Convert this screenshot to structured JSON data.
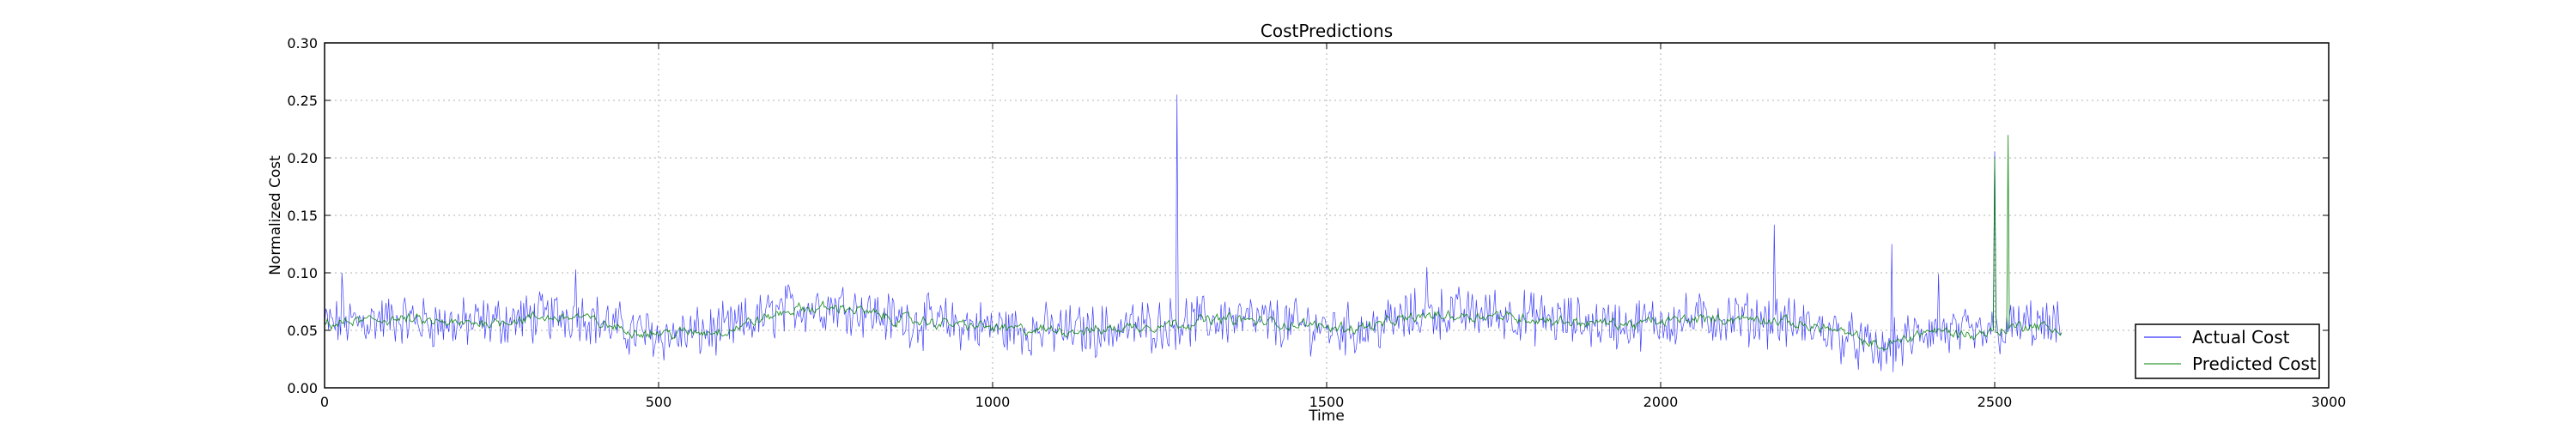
{
  "chart_data": {
    "type": "line",
    "title": "CostPredictions",
    "xlabel": "Time",
    "ylabel": "Normalized Cost",
    "xlim": [
      0,
      3000
    ],
    "ylim": [
      0,
      0.3
    ],
    "xticks": [
      "0",
      "500",
      "1000",
      "1500",
      "2000",
      "2500",
      "3000"
    ],
    "yticks": [
      "0.00",
      "0.05",
      "0.10",
      "0.15",
      "0.20",
      "0.25",
      "0.30"
    ],
    "grid": true,
    "legend_position": "lower-right",
    "x_range": [
      0,
      2600
    ],
    "series": [
      {
        "name": "Actual Cost",
        "color": "#0000ff",
        "baseline": [
          [
            0,
            0.055
          ],
          [
            100,
            0.06
          ],
          [
            200,
            0.055
          ],
          [
            300,
            0.06
          ],
          [
            380,
            0.065
          ],
          [
            450,
            0.05
          ],
          [
            520,
            0.045
          ],
          [
            600,
            0.05
          ],
          [
            700,
            0.07
          ],
          [
            780,
            0.072
          ],
          [
            850,
            0.06
          ],
          [
            950,
            0.055
          ],
          [
            1050,
            0.05
          ],
          [
            1150,
            0.05
          ],
          [
            1250,
            0.055
          ],
          [
            1350,
            0.06
          ],
          [
            1450,
            0.055
          ],
          [
            1550,
            0.05
          ],
          [
            1650,
            0.065
          ],
          [
            1750,
            0.065
          ],
          [
            1850,
            0.058
          ],
          [
            1950,
            0.055
          ],
          [
            2050,
            0.06
          ],
          [
            2150,
            0.06
          ],
          [
            2250,
            0.05
          ],
          [
            2330,
            0.03
          ],
          [
            2400,
            0.05
          ],
          [
            2470,
            0.045
          ],
          [
            2550,
            0.055
          ],
          [
            2600,
            0.05
          ]
        ],
        "spikes": [
          [
            1275,
            0.255
          ],
          [
            2170,
            0.142
          ],
          [
            2345,
            0.125
          ],
          [
            2500,
            0.205
          ],
          [
            1650,
            0.105
          ],
          [
            375,
            0.103
          ],
          [
            25,
            0.1
          ],
          [
            2415,
            0.099
          ]
        ]
      },
      {
        "name": "Predicted Cost",
        "color": "#008000",
        "baseline": [
          [
            0,
            0.055
          ],
          [
            100,
            0.06
          ],
          [
            200,
            0.055
          ],
          [
            300,
            0.06
          ],
          [
            380,
            0.062
          ],
          [
            450,
            0.05
          ],
          [
            520,
            0.047
          ],
          [
            600,
            0.05
          ],
          [
            700,
            0.068
          ],
          [
            780,
            0.07
          ],
          [
            850,
            0.06
          ],
          [
            950,
            0.055
          ],
          [
            1050,
            0.05
          ],
          [
            1150,
            0.05
          ],
          [
            1250,
            0.055
          ],
          [
            1350,
            0.06
          ],
          [
            1450,
            0.055
          ],
          [
            1550,
            0.052
          ],
          [
            1650,
            0.063
          ],
          [
            1750,
            0.063
          ],
          [
            1850,
            0.058
          ],
          [
            1950,
            0.055
          ],
          [
            2050,
            0.06
          ],
          [
            2150,
            0.06
          ],
          [
            2250,
            0.052
          ],
          [
            2330,
            0.035
          ],
          [
            2400,
            0.05
          ],
          [
            2470,
            0.046
          ],
          [
            2550,
            0.055
          ],
          [
            2600,
            0.05
          ]
        ],
        "spikes": [
          [
            2520,
            0.22
          ],
          [
            2500,
            0.2
          ]
        ]
      }
    ]
  }
}
